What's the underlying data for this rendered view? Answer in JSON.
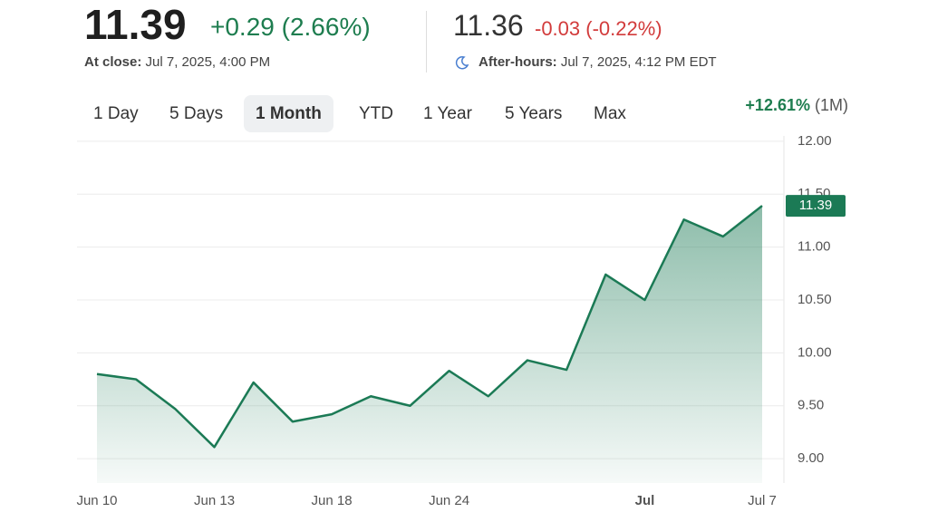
{
  "header": {
    "price": "11.39",
    "change": "+0.29 (2.66%)",
    "close_label": "At close:",
    "close_time": "Jul 7, 2025, 4:00 PM",
    "after_price": "11.36",
    "after_change": "-0.03 (-0.22%)",
    "after_label": "After-hours:",
    "after_time": "Jul 7, 2025, 4:12 PM EDT"
  },
  "tabs": {
    "items": [
      "1 Day",
      "5 Days",
      "1 Month",
      "YTD",
      "1 Year",
      "5 Years",
      "Max"
    ],
    "selected": 2
  },
  "performance": {
    "change": "+12.61%",
    "period": "(1M)"
  },
  "chart_data": {
    "type": "line",
    "categories": [
      "Jun 10",
      null,
      null,
      "Jun 13",
      null,
      null,
      "Jun 18",
      null,
      null,
      "Jun 24",
      null,
      null,
      null,
      null,
      "Jul",
      null,
      null,
      "Jul 7"
    ],
    "values": [
      9.8,
      9.75,
      9.47,
      9.11,
      9.72,
      9.35,
      9.42,
      9.59,
      9.5,
      9.83,
      9.59,
      9.93,
      9.84,
      10.74,
      10.5,
      11.26,
      11.1,
      11.39
    ],
    "color": "#1b7a55",
    "ylim": [
      8.77,
      12.05
    ],
    "yticks": [
      {
        "value": 9,
        "label": "9.00"
      },
      {
        "value": 9.5,
        "label": "9.50"
      },
      {
        "value": 10,
        "label": "10.00"
      },
      {
        "value": 10.5,
        "label": "10.50"
      },
      {
        "value": 11,
        "label": "11.00"
      },
      {
        "value": 11.5,
        "label": "11.50"
      },
      {
        "value": 12,
        "label": "12.00"
      }
    ],
    "grid": true
  }
}
